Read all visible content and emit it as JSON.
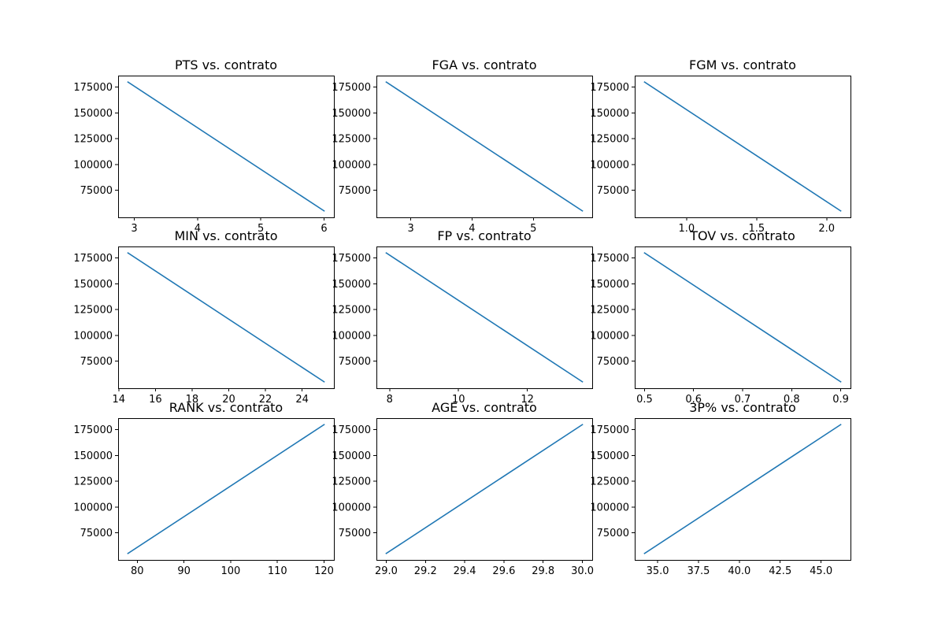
{
  "line_color": "#1f77b4",
  "chart_data": [
    {
      "type": "line",
      "title": "PTS vs. contrato",
      "x": [
        2.9,
        6.0
      ],
      "y": [
        180000,
        55000
      ],
      "xlim": [
        2.745,
        6.155
      ],
      "ylim": [
        48750,
        186250
      ],
      "xticks": [
        3,
        4,
        5,
        6
      ],
      "xtick_labels": [
        "3",
        "4",
        "5",
        "6"
      ],
      "yticks": [
        75000,
        100000,
        125000,
        150000,
        175000
      ],
      "ytick_labels": [
        "75000",
        "100000",
        "125000",
        "150000",
        "175000"
      ]
    },
    {
      "type": "line",
      "title": "FGA vs. contrato",
      "x": [
        2.6,
        5.8
      ],
      "y": [
        180000,
        55000
      ],
      "xlim": [
        2.44,
        5.96
      ],
      "ylim": [
        48750,
        186250
      ],
      "xticks": [
        3,
        4,
        5
      ],
      "xtick_labels": [
        "3",
        "4",
        "5"
      ],
      "yticks": [
        75000,
        100000,
        125000,
        150000,
        175000
      ],
      "ytick_labels": [
        "75000",
        "100000",
        "125000",
        "150000",
        "175000"
      ]
    },
    {
      "type": "line",
      "title": "FGM vs. contrato",
      "x": [
        0.7,
        2.1
      ],
      "y": [
        180000,
        55000
      ],
      "xlim": [
        0.63,
        2.17
      ],
      "ylim": [
        48750,
        186250
      ],
      "xticks": [
        1.0,
        1.5,
        2.0
      ],
      "xtick_labels": [
        "1.0",
        "1.5",
        "2.0"
      ],
      "yticks": [
        75000,
        100000,
        125000,
        150000,
        175000
      ],
      "ytick_labels": [
        "75000",
        "100000",
        "125000",
        "150000",
        "175000"
      ]
    },
    {
      "type": "line",
      "title": "MIN vs. contrato",
      "x": [
        14.5,
        25.2
      ],
      "y": [
        180000,
        55000
      ],
      "xlim": [
        13.965,
        25.735
      ],
      "ylim": [
        48750,
        186250
      ],
      "xticks": [
        14,
        16,
        18,
        20,
        22,
        24
      ],
      "xtick_labels": [
        "14",
        "16",
        "18",
        "20",
        "22",
        "24"
      ],
      "yticks": [
        75000,
        100000,
        125000,
        150000,
        175000
      ],
      "ytick_labels": [
        "75000",
        "100000",
        "125000",
        "150000",
        "175000"
      ]
    },
    {
      "type": "line",
      "title": "FP vs. contrato",
      "x": [
        7.9,
        13.6
      ],
      "y": [
        180000,
        55000
      ],
      "xlim": [
        7.615,
        13.885
      ],
      "ylim": [
        48750,
        186250
      ],
      "xticks": [
        8,
        10,
        12
      ],
      "xtick_labels": [
        "8",
        "10",
        "12"
      ],
      "yticks": [
        75000,
        100000,
        125000,
        150000,
        175000
      ],
      "ytick_labels": [
        "75000",
        "100000",
        "125000",
        "150000",
        "175000"
      ]
    },
    {
      "type": "line",
      "title": "TOV vs. contrato",
      "x": [
        0.5,
        0.9
      ],
      "y": [
        180000,
        55000
      ],
      "xlim": [
        0.48,
        0.92
      ],
      "ylim": [
        48750,
        186250
      ],
      "xticks": [
        0.5,
        0.6,
        0.7,
        0.8,
        0.9
      ],
      "xtick_labels": [
        "0.5",
        "0.6",
        "0.7",
        "0.8",
        "0.9"
      ],
      "yticks": [
        75000,
        100000,
        125000,
        150000,
        175000
      ],
      "ytick_labels": [
        "75000",
        "100000",
        "125000",
        "150000",
        "175000"
      ]
    },
    {
      "type": "line",
      "title": "RANK vs. contrato",
      "x": [
        78,
        120
      ],
      "y": [
        55000,
        180000
      ],
      "xlim": [
        75.9,
        122.1
      ],
      "ylim": [
        48750,
        186250
      ],
      "xticks": [
        80,
        90,
        100,
        110,
        120
      ],
      "xtick_labels": [
        "80",
        "90",
        "100",
        "110",
        "120"
      ],
      "yticks": [
        75000,
        100000,
        125000,
        150000,
        175000
      ],
      "ytick_labels": [
        "75000",
        "100000",
        "125000",
        "150000",
        "175000"
      ]
    },
    {
      "type": "line",
      "title": "AGE vs. contrato",
      "x": [
        29.0,
        30.0
      ],
      "y": [
        55000,
        180000
      ],
      "xlim": [
        28.95,
        30.05
      ],
      "ylim": [
        48750,
        186250
      ],
      "xticks": [
        29.0,
        29.2,
        29.4,
        29.6,
        29.8,
        30.0
      ],
      "xtick_labels": [
        "29.0",
        "29.2",
        "29.4",
        "29.6",
        "29.8",
        "30.0"
      ],
      "yticks": [
        75000,
        100000,
        125000,
        150000,
        175000
      ],
      "ytick_labels": [
        "75000",
        "100000",
        "125000",
        "150000",
        "175000"
      ]
    },
    {
      "type": "line",
      "title": "3P% vs. contrato",
      "x": [
        34.2,
        46.2
      ],
      "y": [
        55000,
        180000
      ],
      "xlim": [
        33.6,
        46.8
      ],
      "ylim": [
        48750,
        186250
      ],
      "xticks": [
        35.0,
        37.5,
        40.0,
        42.5,
        45.0
      ],
      "xtick_labels": [
        "35.0",
        "37.5",
        "40.0",
        "42.5",
        "45.0"
      ],
      "yticks": [
        75000,
        100000,
        125000,
        150000,
        175000
      ],
      "ytick_labels": [
        "75000",
        "100000",
        "125000",
        "150000",
        "175000"
      ]
    }
  ]
}
